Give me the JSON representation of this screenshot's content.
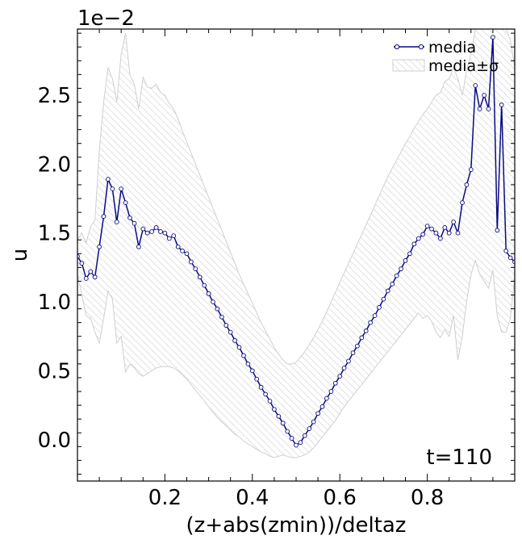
{
  "chart_data": {
    "type": "line",
    "xlabel": "(z+abs(zmin))/deltaz",
    "ylabel": "u",
    "offset_label": "1e−2",
    "annotation": "t=110",
    "xlim": [
      0.0,
      1.0
    ],
    "ylim": [
      -0.003,
      0.0298
    ],
    "x_ticks": [
      0.2,
      0.4,
      0.6,
      0.8
    ],
    "x_tick_labels": [
      "0.2",
      "0.4",
      "0.6",
      "0.8"
    ],
    "y_ticks": [
      0.0,
      0.005,
      0.01,
      0.015,
      0.02,
      0.025
    ],
    "y_tick_labels": [
      "0.0",
      "0.5",
      "1.0",
      "1.5",
      "2.0",
      "2.5"
    ],
    "legend": {
      "placement": "top-right",
      "entries": [
        "media",
        "media±σ"
      ]
    },
    "colors": {
      "line": "#0a0a80",
      "band_edge": "#cfcfcf",
      "band_hatch": "#d6d6d6"
    },
    "series": [
      {
        "name": "media",
        "x": [
          0.0,
          0.01,
          0.02,
          0.03,
          0.04,
          0.05,
          0.06,
          0.07,
          0.08,
          0.09,
          0.1,
          0.11,
          0.12,
          0.13,
          0.14,
          0.15,
          0.16,
          0.17,
          0.18,
          0.19,
          0.2,
          0.21,
          0.22,
          0.23,
          0.24,
          0.25,
          0.26,
          0.27,
          0.28,
          0.29,
          0.3,
          0.31,
          0.32,
          0.33,
          0.34,
          0.35,
          0.36,
          0.37,
          0.38,
          0.39,
          0.4,
          0.41,
          0.42,
          0.43,
          0.44,
          0.45,
          0.46,
          0.47,
          0.48,
          0.49,
          0.5,
          0.51,
          0.52,
          0.53,
          0.54,
          0.55,
          0.56,
          0.57,
          0.58,
          0.59,
          0.6,
          0.61,
          0.62,
          0.63,
          0.64,
          0.65,
          0.66,
          0.67,
          0.68,
          0.69,
          0.7,
          0.71,
          0.72,
          0.73,
          0.74,
          0.75,
          0.76,
          0.77,
          0.78,
          0.79,
          0.8,
          0.81,
          0.82,
          0.83,
          0.84,
          0.85,
          0.86,
          0.87,
          0.88,
          0.89,
          0.9,
          0.91,
          0.92,
          0.93,
          0.94,
          0.95,
          0.96,
          0.97,
          0.98,
          0.99,
          1.0
        ],
        "y": [
          0.0133,
          0.0128,
          0.0117,
          0.0122,
          0.0118,
          0.014,
          0.0162,
          0.0189,
          0.0182,
          0.0158,
          0.0182,
          0.0172,
          0.0161,
          0.0157,
          0.014,
          0.0153,
          0.015,
          0.0151,
          0.0154,
          0.0151,
          0.015,
          0.0146,
          0.0148,
          0.014,
          0.0137,
          0.0135,
          0.0129,
          0.0124,
          0.0118,
          0.0112,
          0.0106,
          0.01,
          0.0095,
          0.0089,
          0.0083,
          0.0078,
          0.0072,
          0.0067,
          0.0061,
          0.0055,
          0.005,
          0.0044,
          0.0038,
          0.0033,
          0.0028,
          0.0022,
          0.0017,
          0.0012,
          0.0006,
          0.0001,
          -0.0004,
          -0.0002,
          0.0003,
          0.0008,
          0.0013,
          0.0019,
          0.0024,
          0.003,
          0.0035,
          0.0041,
          0.0046,
          0.0052,
          0.0057,
          0.0063,
          0.0068,
          0.0074,
          0.0079,
          0.0085,
          0.009,
          0.0096,
          0.0102,
          0.0108,
          0.0113,
          0.0119,
          0.0124,
          0.013,
          0.0135,
          0.0142,
          0.0146,
          0.0149,
          0.0155,
          0.0153,
          0.015,
          0.0146,
          0.0154,
          0.015,
          0.0158,
          0.015,
          0.0172,
          0.0185,
          0.0196,
          0.0257,
          0.024,
          0.025,
          0.024,
          0.0292,
          0.0152,
          0.0243,
          0.0137,
          0.0132,
          0.0129
        ]
      }
    ],
    "band": {
      "name": "media±σ",
      "x": [
        0.0,
        0.01,
        0.02,
        0.03,
        0.04,
        0.05,
        0.06,
        0.07,
        0.08,
        0.09,
        0.1,
        0.11,
        0.12,
        0.13,
        0.14,
        0.15,
        0.16,
        0.17,
        0.18,
        0.19,
        0.2,
        0.21,
        0.22,
        0.23,
        0.24,
        0.25,
        0.26,
        0.27,
        0.28,
        0.29,
        0.3,
        0.31,
        0.32,
        0.33,
        0.34,
        0.35,
        0.36,
        0.37,
        0.38,
        0.39,
        0.4,
        0.41,
        0.42,
        0.43,
        0.44,
        0.45,
        0.46,
        0.47,
        0.48,
        0.49,
        0.5,
        0.51,
        0.52,
        0.53,
        0.54,
        0.55,
        0.56,
        0.57,
        0.58,
        0.59,
        0.6,
        0.61,
        0.62,
        0.63,
        0.64,
        0.65,
        0.66,
        0.67,
        0.68,
        0.69,
        0.7,
        0.71,
        0.72,
        0.73,
        0.74,
        0.75,
        0.76,
        0.77,
        0.78,
        0.79,
        0.8,
        0.81,
        0.82,
        0.83,
        0.84,
        0.85,
        0.86,
        0.87,
        0.88,
        0.89,
        0.9,
        0.91,
        0.92,
        0.93,
        0.94,
        0.95,
        0.96,
        0.97,
        0.98,
        0.99,
        1.0
      ],
      "upper": [
        0.0145,
        0.015,
        0.0143,
        0.0155,
        0.0159,
        0.021,
        0.0245,
        0.027,
        0.0262,
        0.0245,
        0.028,
        0.0295,
        0.0265,
        0.0258,
        0.024,
        0.0263,
        0.0256,
        0.0255,
        0.0258,
        0.0252,
        0.025,
        0.0244,
        0.024,
        0.0233,
        0.0224,
        0.0216,
        0.0208,
        0.02,
        0.0192,
        0.0184,
        0.0176,
        0.0168,
        0.016,
        0.0152,
        0.0144,
        0.0136,
        0.0128,
        0.012,
        0.0113,
        0.0106,
        0.0099,
        0.0092,
        0.0085,
        0.0079,
        0.0073,
        0.0067,
        0.0062,
        0.0058,
        0.0055,
        0.0055,
        0.0056,
        0.006,
        0.0064,
        0.0069,
        0.0074,
        0.008,
        0.0086,
        0.0093,
        0.01,
        0.0107,
        0.0114,
        0.0121,
        0.0128,
        0.0135,
        0.0142,
        0.0149,
        0.0156,
        0.0163,
        0.017,
        0.0177,
        0.0184,
        0.0191,
        0.0197,
        0.0203,
        0.0209,
        0.0215,
        0.022,
        0.0226,
        0.0231,
        0.0236,
        0.024,
        0.0245,
        0.025,
        0.0252,
        0.026,
        0.0262,
        0.027,
        0.0262,
        0.025,
        0.0268,
        0.028,
        0.0298,
        0.0298,
        0.0298,
        0.0298,
        0.0298,
        0.0298,
        0.0298,
        0.0298,
        0.029,
        0.027
      ],
      "lower": [
        0.012,
        0.0105,
        0.009,
        0.0088,
        0.0078,
        0.007,
        0.0088,
        0.0108,
        0.0102,
        0.007,
        0.0075,
        0.0049,
        0.0055,
        0.0052,
        0.0048,
        0.0046,
        0.0048,
        0.005,
        0.0052,
        0.0053,
        0.0053,
        0.0053,
        0.0052,
        0.005,
        0.0047,
        0.0044,
        0.004,
        0.0036,
        0.0032,
        0.0028,
        0.0024,
        0.002,
        0.0016,
        0.0013,
        0.001,
        0.0007,
        0.0004,
        0.0002,
        -0.0001,
        -0.0003,
        -0.0005,
        -0.0007,
        -0.0009,
        -0.001,
        -0.0012,
        -0.0013,
        -0.0012,
        -0.0011,
        -0.0012,
        -0.0013,
        -0.0013,
        -0.0012,
        -0.0011,
        -0.0009,
        -0.0006,
        -0.0002,
        0.0002,
        0.0006,
        0.001,
        0.0014,
        0.0019,
        0.0024,
        0.0028,
        0.0032,
        0.0036,
        0.004,
        0.0044,
        0.0048,
        0.0052,
        0.0056,
        0.006,
        0.0064,
        0.0068,
        0.0072,
        0.0076,
        0.008,
        0.0084,
        0.0088,
        0.0092,
        0.0088,
        0.009,
        0.0086,
        0.0078,
        0.0074,
        0.008,
        0.0075,
        0.009,
        0.0058,
        0.0075,
        0.01,
        0.012,
        0.013,
        0.012,
        0.0115,
        0.011,
        0.0123,
        0.009,
        0.0078,
        0.0078,
        0.0088,
        0.0118
      ]
    }
  }
}
